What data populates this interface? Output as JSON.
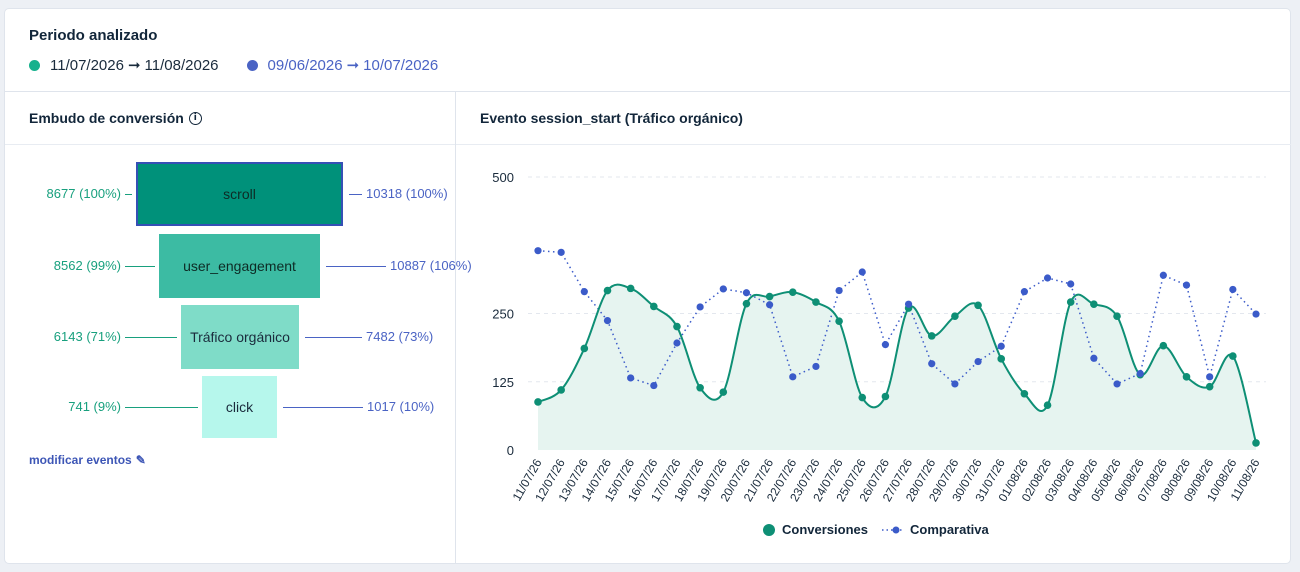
{
  "period": {
    "title": "Periodo analizado",
    "current": {
      "start": "11/07/2026",
      "end": "11/08/2026",
      "color": "#17b18d"
    },
    "previous": {
      "start": "09/06/2026",
      "end": "10/07/2026",
      "color": "#4a63c4"
    },
    "arrow": "➞"
  },
  "funnel": {
    "title": "Embudo de conversión",
    "info_icon": "info-icon",
    "modify_label": "modificar eventos",
    "modify_icon": "pencil-icon",
    "steps": [
      {
        "name": "scroll",
        "left": "8677 (100%)",
        "right": "10318 (100%)",
        "color": "#00917a",
        "text_color": "#0d2b25"
      },
      {
        "name": "user_engagement",
        "left": "8562 (99%)",
        "right": "10887 (106%)",
        "color": "#3cbba3",
        "text_color": "#0d2b25"
      },
      {
        "name": "Tráfico orgánico",
        "left": "6143 (71%)",
        "right": "7482 (73%)",
        "color": "#7fdcc8",
        "text_color": "#1a2b3c"
      },
      {
        "name": "click",
        "left": "741 (9%)",
        "right": "1017 (10%)",
        "color": "#b6f7ec",
        "text_color": "#1a2b3c"
      }
    ]
  },
  "chart_panel": {
    "title": "Evento session_start (Tráfico orgánico)"
  },
  "chart_data": {
    "type": "line",
    "title": "Evento session_start (Tráfico orgánico)",
    "xlabel": "",
    "ylabel": "",
    "ylim": [
      0,
      500
    ],
    "y_ticks": [
      0,
      125,
      250,
      500
    ],
    "grid": true,
    "legend_position": "bottom",
    "x": [
      "11/07/26",
      "12/07/26",
      "13/07/26",
      "14/07/26",
      "15/07/26",
      "16/07/26",
      "17/07/26",
      "18/07/26",
      "19/07/26",
      "20/07/26",
      "21/07/26",
      "22/07/26",
      "23/07/26",
      "24/07/26",
      "25/07/26",
      "26/07/26",
      "27/07/26",
      "28/07/26",
      "29/07/26",
      "30/07/26",
      "31/07/26",
      "01/08/26",
      "02/08/26",
      "03/08/26",
      "04/08/26",
      "05/08/26",
      "06/08/26",
      "07/08/26",
      "08/08/26",
      "09/08/26",
      "10/08/26",
      "11/08/26"
    ],
    "series": [
      {
        "name": "Conversiones",
        "color": "#0e8f75",
        "style": "smooth-area",
        "values": [
          88,
          110,
          186,
          292,
          296,
          263,
          226,
          114,
          106,
          268,
          281,
          289,
          271,
          236,
          96,
          98,
          260,
          209,
          245,
          265,
          167,
          103,
          82,
          271,
          267,
          245,
          138,
          191,
          134,
          116,
          172,
          13
        ]
      },
      {
        "name": "Comparativa",
        "color": "#3b5bc9",
        "style": "dotted",
        "values": [
          365,
          362,
          290,
          237,
          132,
          118,
          196,
          262,
          295,
          288,
          266,
          134,
          153,
          292,
          326,
          193,
          267,
          158,
          121,
          162,
          190,
          290,
          315,
          304,
          168,
          121,
          140,
          320,
          302,
          134,
          294,
          249
        ]
      }
    ]
  }
}
